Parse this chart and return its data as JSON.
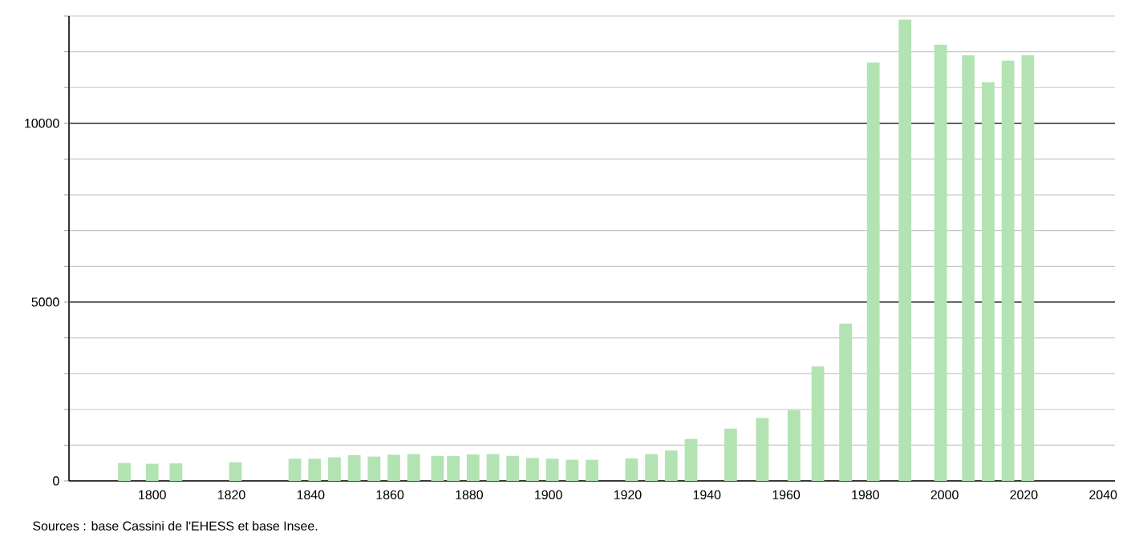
{
  "chart_data": {
    "type": "bar",
    "color": "#b3e3b3",
    "x": [
      1793,
      1800,
      1806,
      1821,
      1836,
      1841,
      1846,
      1851,
      1856,
      1861,
      1866,
      1872,
      1876,
      1881,
      1886,
      1891,
      1896,
      1901,
      1906,
      1911,
      1921,
      1926,
      1931,
      1936,
      1946,
      1954,
      1962,
      1968,
      1975,
      1982,
      1990,
      1999,
      2006,
      2011,
      2016,
      2021
    ],
    "values": [
      500,
      480,
      490,
      520,
      620,
      620,
      660,
      720,
      680,
      730,
      750,
      700,
      700,
      740,
      750,
      700,
      640,
      620,
      590,
      590,
      630,
      750,
      850,
      1170,
      1460,
      1760,
      1980,
      3200,
      4400,
      11700,
      12900,
      12200,
      11900,
      11150,
      11750,
      11900
    ],
    "xlim": [
      1779,
      2043
    ],
    "xticks": [
      1800,
      1820,
      1840,
      1860,
      1880,
      1900,
      1920,
      1940,
      1960,
      1980,
      2000,
      2020,
      2040
    ],
    "ylim": [
      0,
      13000
    ],
    "yticks": [
      0,
      {
        "value": 1000,
        "label": null
      },
      {
        "value": 2000,
        "label": null
      },
      {
        "value": 3000,
        "label": null
      },
      {
        "value": 4000,
        "label": null
      },
      5000,
      {
        "value": 6000,
        "label": null
      },
      {
        "value": 7000,
        "label": null
      },
      {
        "value": 8000,
        "label": null
      },
      {
        "value": 9000,
        "label": null
      },
      10000,
      {
        "value": 11000,
        "label": null
      },
      {
        "value": 12000,
        "label": null
      },
      {
        "value": 13000,
        "label": null
      }
    ],
    "grid": "y",
    "annotations": [
      "Sources : base Cassini de l'EHESS et base Insee."
    ]
  }
}
